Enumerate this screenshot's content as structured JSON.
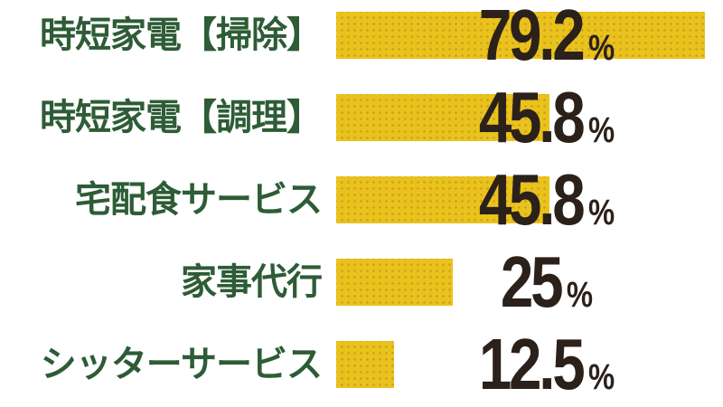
{
  "chart_data": {
    "type": "bar",
    "orientation": "horizontal",
    "title": "",
    "xlabel": "",
    "ylabel": "",
    "unit": "%",
    "grid": false,
    "axes_visible": false,
    "legend": "none",
    "xlim": [
      0,
      83
    ],
    "categories": [
      "時短家電【掃除】",
      "時短家電【調理】",
      "宅配食サービス",
      "家事代行",
      "シッターサービス"
    ],
    "values": [
      79.2,
      45.8,
      45.8,
      25,
      12.5
    ],
    "rows": [
      {
        "label": "時短家電【掃除】",
        "value": 79.2,
        "value_text": "79.2"
      },
      {
        "label": "時短家電【調理】",
        "value": 45.8,
        "value_text": "45.8"
      },
      {
        "label": "宅配食サービス",
        "value": 45.8,
        "value_text": "45.8"
      },
      {
        "label": "家事代行",
        "value": 25,
        "value_text": "25"
      },
      {
        "label": "シッターサービス",
        "value": 12.5,
        "value_text": "12.5"
      }
    ],
    "colors": {
      "bar_fill": "#e9c31b",
      "bar_dot_pattern": "#cd9c28",
      "category_label": "#2d5c36",
      "value_text": "#2b211a",
      "background": "#ffffff"
    }
  }
}
